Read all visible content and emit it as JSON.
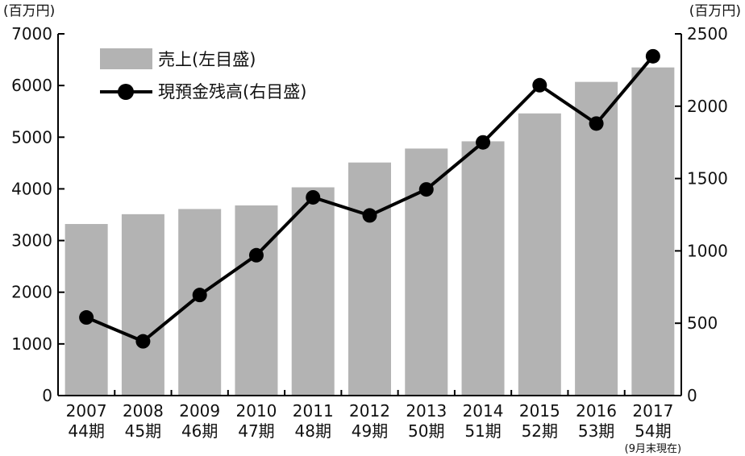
{
  "chart_data": {
    "type": "bar",
    "categories": [
      "2007",
      "2008",
      "2009",
      "2010",
      "2011",
      "2012",
      "2013",
      "2014",
      "2015",
      "2016",
      "2017"
    ],
    "category_sublabels": [
      "44期",
      "45期",
      "46期",
      "47期",
      "48期",
      "49期",
      "50期",
      "51期",
      "52期",
      "53期",
      "54期"
    ],
    "category_note": "(9月末現在)",
    "left_unit": "(百万円)",
    "right_unit": "(百万円)",
    "ylim_left": [
      0,
      7000
    ],
    "yticks_left": [
      0,
      1000,
      2000,
      3000,
      4000,
      5000,
      6000,
      7000
    ],
    "ylim_right": [
      0,
      2500
    ],
    "yticks_right": [
      0,
      500,
      1000,
      1500,
      2000,
      2500
    ],
    "legend_placement": "top-left",
    "series": [
      {
        "name": "売上(左目盛)",
        "type": "bar",
        "axis": "left",
        "color": "#b3b3b3",
        "values": [
          3320,
          3510,
          3610,
          3680,
          4030,
          4510,
          4780,
          4920,
          5460,
          6070,
          6350
        ]
      },
      {
        "name": "現預金残高(右目盛)",
        "type": "line",
        "axis": "right",
        "color": "#000000",
        "values": [
          540,
          375,
          695,
          970,
          1370,
          1245,
          1425,
          1750,
          2145,
          1880,
          2345
        ]
      }
    ]
  }
}
